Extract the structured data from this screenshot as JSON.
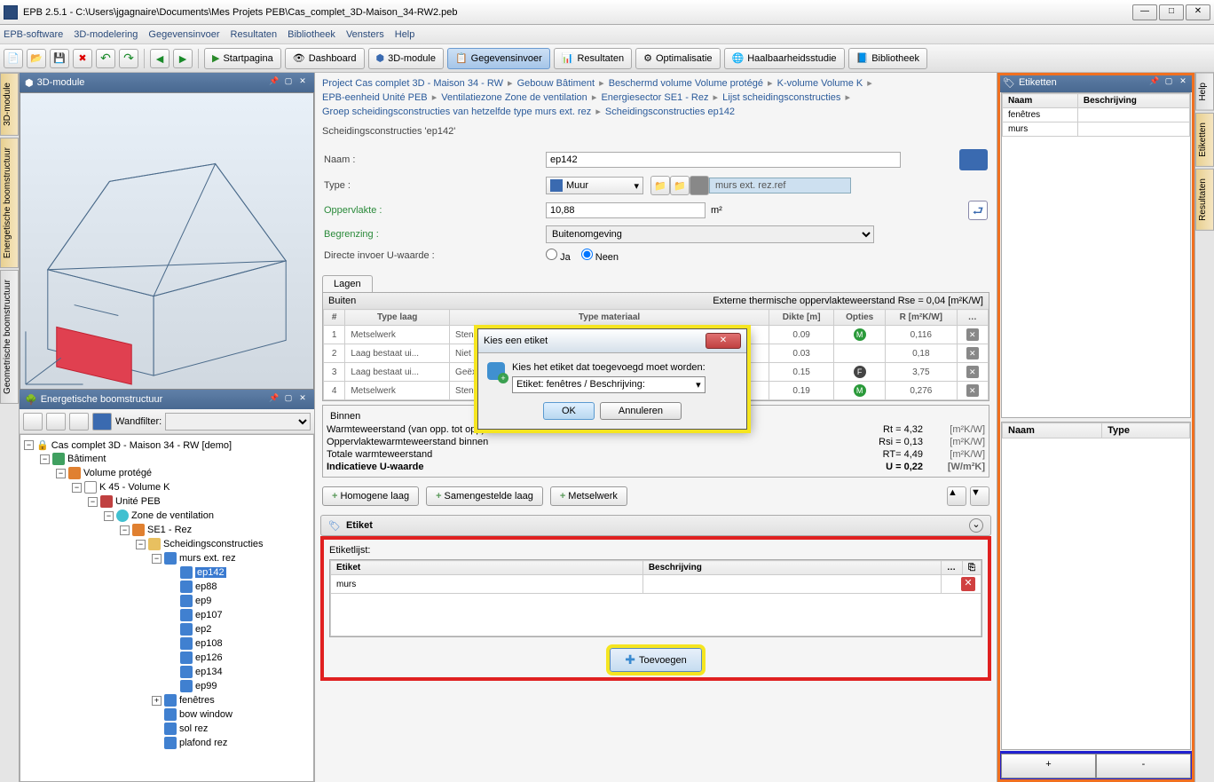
{
  "window": {
    "title": "EPB 2.5.1 - C:\\Users\\jgagnaire\\Documents\\Mes Projets PEB\\Cas_complet_3D-Maison_34-RW2.peb"
  },
  "menu": [
    "EPB-software",
    "3D-modelering",
    "Gegevensinvoer",
    "Resultaten",
    "Bibliotheek",
    "Vensters",
    "Help"
  ],
  "toolbar": {
    "startpagina": "Startpagina",
    "dashboard": "Dashboard",
    "module3d": "3D-module",
    "gegevensinvoer": "Gegevensinvoer",
    "resultaten": "Resultaten",
    "optimalisatie": "Optimalisatie",
    "haalbaarheid": "Haalbaarheidsstudie",
    "bibliotheek": "Bibliotheek"
  },
  "left_tabs": [
    "3D-module",
    "Energetische boomstructuur",
    "Geometrische boomstructuur"
  ],
  "right_tabs": [
    "Help",
    "Etiketten",
    "Resultaten"
  ],
  "panel3d": {
    "title": "3D-module"
  },
  "tree_panel": {
    "title": "Energetische boomstructuur",
    "filter_label": "Wandfilter:",
    "root": "Cas complet 3D - Maison 34 - RW [demo]",
    "nodes": {
      "batiment": "Bâtiment",
      "volume": "Volume protégé",
      "k45": "K 45 - Volume K",
      "unite": "Unité PEB",
      "zone": "Zone de ventilation",
      "se1": "SE1 - Rez",
      "scheid": "Scheidingsconstructies",
      "murs": "murs ext. rez",
      "items": [
        "ep142",
        "ep88",
        "ep9",
        "ep107",
        "ep2",
        "ep108",
        "ep126",
        "ep134",
        "ep99"
      ],
      "fenetres": "fenêtres",
      "bow": "bow window",
      "sol": "sol rez",
      "plafond": "plafond rez"
    }
  },
  "breadcrumb": [
    "Project Cas complet 3D - Maison 34 - RW",
    "Gebouw Bâtiment",
    "Beschermd volume Volume protégé",
    "K-volume Volume K",
    "EPB-eenheid Unité PEB",
    "Ventilatiezone Zone de ventilation",
    "Energiesector SE1 - Rez",
    "Lijst scheidingsconstructies",
    "Groep scheidingsconstructies van hetzelfde type murs ext. rez",
    "Scheidingsconstructies ep142"
  ],
  "section_title": "Scheidingsconstructies 'ep142'",
  "form": {
    "naam_label": "Naam :",
    "naam_value": "ep142",
    "type_label": "Type :",
    "type_value": "Muur",
    "ref_text": "murs ext. rez.ref",
    "opp_label": "Oppervlakte :",
    "opp_value": "10,88",
    "opp_unit": "m²",
    "begrenzing_label": "Begrenzing  :",
    "begrenzing_value": "Buitenomgeving",
    "uwaarde_label": "Directe invoer U-waarde :",
    "ja": "Ja",
    "neen": "Neen"
  },
  "tabs": {
    "lagen": "Lagen"
  },
  "layers": {
    "buiten": "Buiten",
    "rse_label": "Externe thermische oppervlakteweerstand  Rse = 0,04   [m²K/W]",
    "col_num": "#",
    "col_type": "Type laag",
    "col_mat": "Type materiaal",
    "col_dikte": "Dikte [m]",
    "col_opties": "Opties",
    "col_r": "R [m²K/W]",
    "rows": [
      {
        "n": "1",
        "type": "Metselwerk",
        "mat": "Stene... / Ceme...",
        "dikte": "0.09",
        "opt": "M",
        "r": "0,116"
      },
      {
        "n": "2",
        "type": "Laag bestaat ui...",
        "mat": "Niet geve...",
        "dikte": "0.03",
        "opt": "",
        "r": "0,18"
      },
      {
        "n": "3",
        "type": "Laag bestaat ui...",
        "mat": "Geëxtrud...",
        "dikte": "0.15",
        "opt": "F",
        "r": "3,75"
      },
      {
        "n": "4",
        "type": "Metselwerk",
        "mat": "Stene... / Ceme...",
        "dikte": "0.19",
        "opt": "M",
        "r": "0,276"
      }
    ],
    "binnen": "Binnen"
  },
  "summary": {
    "r1": {
      "k": "Warmteweerstand (van opp. tot opp)",
      "v": "Rt = 4,32",
      "u": "[m²K/W]"
    },
    "r2": {
      "k": "Oppervlaktewarmteweerstand binnen",
      "v": "Rsi = 0,13",
      "u": "[m²K/W]"
    },
    "r3": {
      "k": "Totale warmteweerstand",
      "v": "RT= 4,49",
      "u": "[m²K/W]"
    },
    "r4": {
      "k": "Indicatieve U-waarde",
      "v": "U = 0,22",
      "u": "[W/m²K]"
    }
  },
  "buttons": {
    "homogene": "Homogene laag",
    "samengestelde": "Samengestelde laag",
    "metselwerk": "Metselwerk"
  },
  "etiket": {
    "head": "Etiket",
    "list_label": "Etiketlijst:",
    "col_etiket": "Etiket",
    "col_besch": "Beschrijving",
    "row_val": "murs",
    "toevoegen": "Toevoegen"
  },
  "right_panel": {
    "title": "Etiketten",
    "col_naam": "Naam",
    "col_besch": "Beschrijving",
    "rows": [
      "fenêtres",
      "murs"
    ],
    "lower_col_naam": "Naam",
    "lower_col_type": "Type",
    "plus": "+",
    "minus": "-"
  },
  "dialog": {
    "title": "Kies een etiket",
    "msg": "Kies het etiket dat toegevoegd moet worden:",
    "combo": "Etiket: fenêtres / Beschrijving:",
    "ok": "OK",
    "cancel": "Annuleren"
  }
}
